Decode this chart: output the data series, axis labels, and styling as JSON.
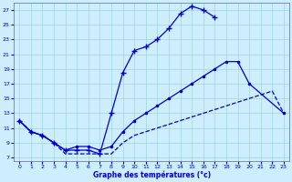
{
  "xlabel": "Graphe des températures (°c)",
  "xlim": [
    -0.5,
    23.5
  ],
  "ylim": [
    6.5,
    28
  ],
  "yticks": [
    7,
    9,
    11,
    13,
    15,
    17,
    19,
    21,
    23,
    25,
    27
  ],
  "xticks": [
    0,
    1,
    2,
    3,
    4,
    5,
    6,
    7,
    8,
    9,
    10,
    11,
    12,
    13,
    14,
    15,
    16,
    17,
    18,
    19,
    20,
    21,
    22,
    23
  ],
  "bg_color": "#cceeff",
  "line_color": "#0000cc",
  "line1_x": [
    0,
    1,
    2,
    3,
    4,
    5,
    6,
    7,
    8,
    9,
    10,
    11,
    12,
    13,
    14,
    15,
    16,
    17
  ],
  "line1_y": [
    12,
    10.5,
    10,
    9,
    8,
    8,
    8,
    7.5,
    13,
    18.5,
    21.5,
    22,
    23,
    24.5,
    26.5,
    27.5,
    27,
    26
  ],
  "line2_x": [
    0,
    1,
    2,
    3,
    4,
    5,
    6,
    7,
    8,
    9,
    10,
    11,
    12,
    13,
    14,
    15,
    16,
    17,
    18,
    19,
    20,
    23
  ],
  "line2_y": [
    12,
    10.5,
    10,
    9,
    8,
    8.5,
    8.5,
    8,
    8.5,
    10.5,
    12,
    13,
    14,
    15,
    16,
    17,
    18,
    19,
    20,
    20,
    17,
    13
  ],
  "line3_x": [
    0,
    1,
    2,
    3,
    4,
    5,
    6,
    7,
    8,
    9,
    10,
    11,
    12,
    13,
    14,
    15,
    16,
    17,
    18,
    19,
    20,
    21,
    22,
    23
  ],
  "line3_y": [
    12,
    10.5,
    10,
    9,
    7.5,
    7.5,
    7.5,
    7.5,
    7.5,
    9,
    10,
    10.5,
    11,
    11.5,
    12,
    12.5,
    13,
    13.5,
    14,
    14.5,
    15,
    15.5,
    16,
    13
  ]
}
